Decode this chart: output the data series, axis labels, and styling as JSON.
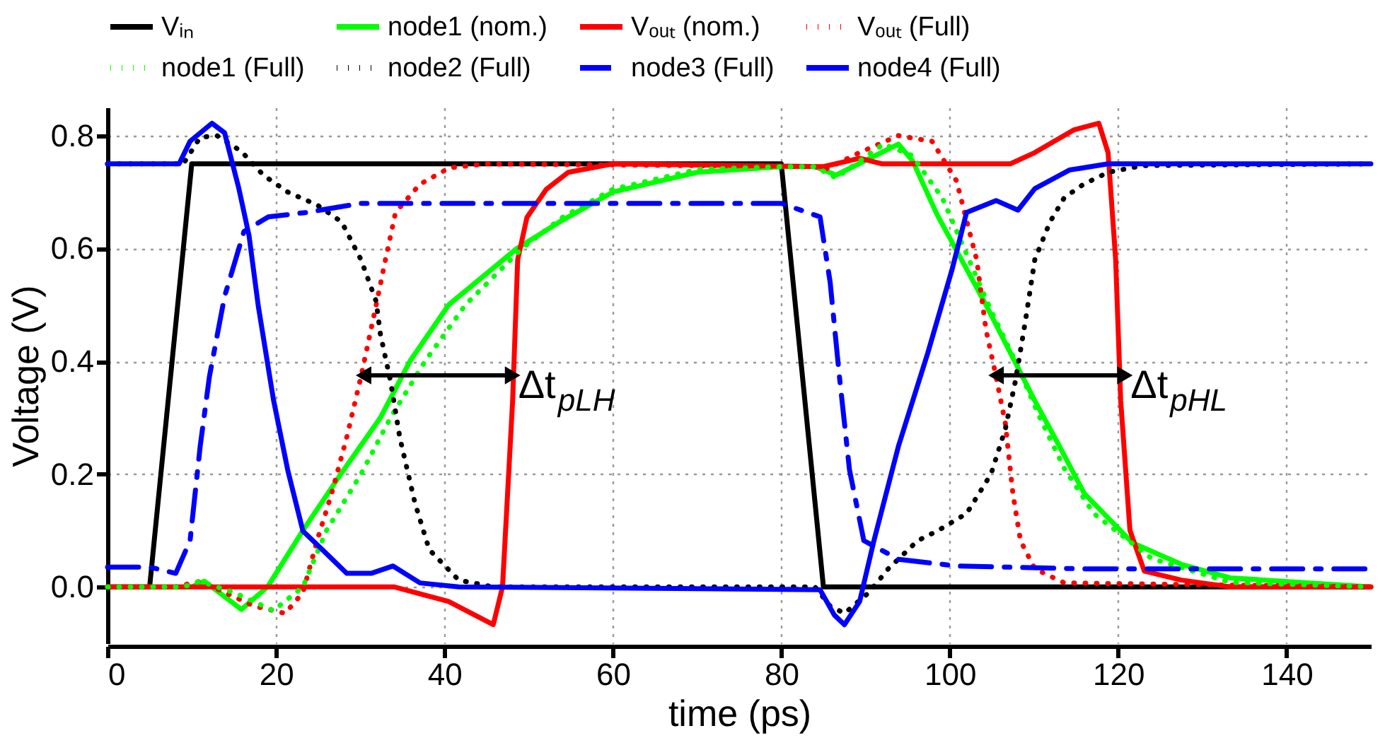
{
  "chart_data": {
    "type": "line",
    "xlabel": "time (ps)",
    "ylabel": "Voltage (V)",
    "xlim": [
      0,
      150
    ],
    "xticks": [
      0,
      20,
      40,
      60,
      80,
      100,
      120,
      140
    ],
    "ylim": [
      -0.1,
      0.85
    ],
    "yticks": [
      {
        "value": 0,
        "label": "0.0"
      },
      0.2,
      0.4,
      0.6,
      0.8
    ],
    "grid": true,
    "legend": "top",
    "series": [
      {
        "name": "Vᵢₙ",
        "color": "#000000",
        "line_style": "solid",
        "x": [
          0,
          5,
          10,
          80,
          85,
          150
        ],
        "values": [
          0,
          0,
          0.75,
          0.75,
          0,
          0
        ]
      },
      {
        "name": "node1 (nom.)",
        "color": "#00ff00",
        "line_style": "solid",
        "x": [
          0,
          10,
          11.5,
          15.9,
          19,
          23.2,
          27.7,
          32.4,
          35.9,
          40.5,
          48.6,
          54,
          60,
          70,
          80,
          84,
          86.5,
          93.9,
          95.6,
          98.5,
          101.4,
          104.3,
          107.2,
          110.1,
          113,
          116,
          121.7,
          127.5,
          133.3,
          150
        ],
        "values": [
          0,
          0,
          0.01,
          -0.04,
          0,
          0.1,
          0.2,
          0.3,
          0.4,
          0.5,
          0.6,
          0.65,
          0.7,
          0.735,
          0.745,
          0.745,
          0.73,
          0.785,
          0.755,
          0.66,
          0.58,
          0.5,
          0.415,
          0.33,
          0.25,
          0.165,
          0.078,
          0.04,
          0.016,
          0
        ]
      },
      {
        "name": "Vₒᵤₜ (nom.)",
        "color": "#ff0000",
        "line_style": "solid",
        "x": [
          0,
          34,
          40.5,
          45.8,
          46.9,
          48.1,
          48.7,
          49.8,
          52.1,
          54.7,
          60,
          85,
          89.3,
          92,
          107.2,
          110.1,
          114.7,
          117.7,
          118.8,
          119.7,
          120.3,
          121.4,
          123.1,
          127.5,
          133.3,
          150
        ],
        "values": [
          0,
          0,
          -0.026,
          -0.067,
          0,
          0.33,
          0.58,
          0.655,
          0.705,
          0.735,
          0.75,
          0.745,
          0.76,
          0.75,
          0.75,
          0.77,
          0.81,
          0.822,
          0.77,
          0.58,
          0.33,
          0.1,
          0.028,
          0.012,
          0,
          0
        ]
      },
      {
        "name": "Vₒᵤₜ (Full)",
        "color": "#ff0000",
        "line_style": "dotted",
        "x": [
          0,
          8,
          11,
          17.4,
          21.1,
          23.2,
          24.9,
          26.6,
          28.4,
          30.1,
          31.9,
          33,
          34.2,
          37.1,
          40.6,
          45,
          84,
          85.2,
          89.3,
          93.9,
          97.9,
          100.8,
          103.2,
          104.3,
          105.5,
          106.6,
          107.5,
          108.4,
          110.1,
          113.6,
          150
        ],
        "values": [
          0,
          0,
          0.01,
          -0.034,
          -0.047,
          -0.01,
          0.083,
          0.165,
          0.265,
          0.373,
          0.5,
          0.58,
          0.664,
          0.714,
          0.743,
          0.75,
          0.745,
          0.74,
          0.77,
          0.8,
          0.79,
          0.72,
          0.58,
          0.456,
          0.373,
          0.29,
          0.165,
          0.082,
          0.032,
          0.007,
          0
        ]
      },
      {
        "name": "node1 (Full)",
        "color": "#00ff00",
        "line_style": "dotted",
        "x": [
          0,
          9,
          11,
          15,
          19.7,
          23.2,
          26,
          30.1,
          33.6,
          37.7,
          42.5,
          49.2,
          54,
          60,
          70,
          80,
          84,
          86.5,
          92.1,
          95.5,
          99.1,
          102,
          104.9,
          107.8,
          110.7,
          113.6,
          117.1,
          124,
          133.3,
          150
        ],
        "values": [
          0,
          0,
          0.01,
          -0.01,
          -0.042,
          0,
          0.1,
          0.2,
          0.3,
          0.4,
          0.5,
          0.6,
          0.655,
          0.705,
          0.74,
          0.745,
          0.745,
          0.725,
          0.785,
          0.765,
          0.69,
          0.59,
          0.49,
          0.4,
          0.3,
          0.21,
          0.13,
          0.05,
          0.008,
          0
        ]
      },
      {
        "name": "node2 (Full)",
        "color": "#000000",
        "line_style": "dotted",
        "x": [
          0,
          9,
          11,
          13,
          15.9,
          18.5,
          21.4,
          24.9,
          27.8,
          30.1,
          31.9,
          32.4,
          33.6,
          34.7,
          36.5,
          38.2,
          41.7,
          45.8,
          84,
          85.8,
          87.5,
          90.4,
          92.7,
          96.2,
          98.5,
          102,
          104.9,
          106.6,
          107.8,
          109,
          110.1,
          111.9,
          113.6,
          115.9,
          118.8,
          122.9,
          150
        ],
        "values": [
          0.75,
          0.75,
          0.797,
          0.8,
          0.772,
          0.73,
          0.7,
          0.677,
          0.647,
          0.58,
          0.506,
          0.448,
          0.365,
          0.265,
          0.149,
          0.066,
          0.012,
          0,
          0,
          -0.034,
          -0.047,
          -0.01,
          0.032,
          0.082,
          0.099,
          0.13,
          0.2,
          0.28,
          0.365,
          0.473,
          0.58,
          0.647,
          0.69,
          0.714,
          0.735,
          0.747,
          0.75
        ]
      },
      {
        "name": "node3 (Full)",
        "color": "#0000ff",
        "line_style": "dashed",
        "x": [
          0,
          5,
          8.1,
          9.8,
          11,
          12.1,
          13.9,
          16.2,
          19.1,
          23.7,
          30.1,
          80,
          84.6,
          85.8,
          86.9,
          88.1,
          89.8,
          93.9,
          100.8,
          115.9,
          150
        ],
        "values": [
          0.035,
          0.035,
          0.024,
          0.082,
          0.249,
          0.373,
          0.515,
          0.63,
          0.656,
          0.664,
          0.68,
          0.68,
          0.656,
          0.54,
          0.373,
          0.207,
          0.082,
          0.049,
          0.037,
          0.032,
          0.032
        ]
      },
      {
        "name": "node4 (Full)",
        "color": "#0000ff",
        "line_style": "solid",
        "x": [
          0,
          8.5,
          9.8,
          12.4,
          13.9,
          15.6,
          16.8,
          17.9,
          19.7,
          21.4,
          23.2,
          25.5,
          28.4,
          31.3,
          33.9,
          37.1,
          41.7,
          84.6,
          86.3,
          87.5,
          89.3,
          91,
          93.9,
          97.4,
          100.3,
          102,
          105.5,
          108.1,
          110.1,
          114.2,
          118.8,
          150
        ],
        "values": [
          0.75,
          0.75,
          0.79,
          0.822,
          0.805,
          0.706,
          0.623,
          0.498,
          0.332,
          0.207,
          0.099,
          0.066,
          0.024,
          0.024,
          0.037,
          0.007,
          0,
          -0.005,
          -0.05,
          -0.067,
          -0.026,
          0.082,
          0.249,
          0.415,
          0.564,
          0.664,
          0.685,
          0.668,
          0.706,
          0.739,
          0.75,
          0.75
        ]
      },
      {
        "type": "line",
        "marker": "triangle",
        "color": "#000000",
        "line_style": "solid",
        "x": [
          30.4,
          48.1
        ],
        "values": [
          0.375,
          0.375
        ]
      },
      {
        "type": "line",
        "marker": "triangle",
        "color": "#000000",
        "line_style": "solid",
        "x": [
          105.5,
          120.8
        ],
        "values": [
          0.375,
          0.375
        ]
      }
    ],
    "annotations": [
      {
        "text": "Δt$_{pLH}$",
        "x": 48.1,
        "y": 0.375
      },
      {
        "text": "Δt$_{pHL}$",
        "x": 120.8,
        "y": 0.375
      }
    ]
  }
}
